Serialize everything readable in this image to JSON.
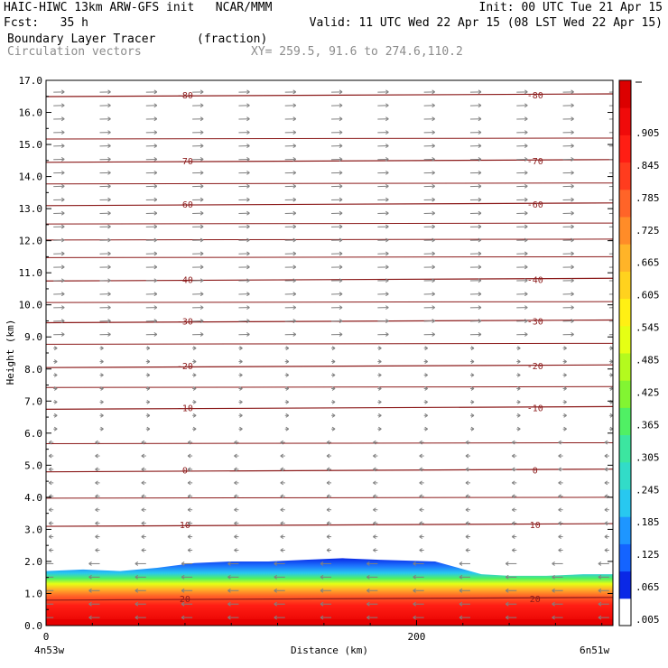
{
  "header": {
    "line1_left": "HAIC-HIWC 13km ARW-GFS init   NCAR/MMM",
    "line1_right": "Init: 00 UTC Tue 21 Apr 15",
    "line2_left": "Fcst:   35 h",
    "line2_right": "Valid: 11 UTC Wed 22 Apr 15 (08 LST Wed 22 Apr 15)",
    "field_name": "Boundary Layer Tracer",
    "field_units": "(fraction)",
    "vector_name": "Circulation vectors",
    "xy_range": "XY= 259.5, 91.6 to 274.6,110.2"
  },
  "colors": {
    "isotherm": "#8b1a1a",
    "vector": "#808080",
    "frame": "#000000"
  },
  "chart_data": {
    "type": "heatmap",
    "xlabel": "Distance (km)",
    "ylabel": "Height (km)",
    "xlim": [
      0,
      306
    ],
    "ylim": [
      0,
      17
    ],
    "x_ticks": [
      0,
      200
    ],
    "y_ticks": [
      "0.0",
      "1.0",
      "2.0",
      "3.0",
      "4.0",
      "5.0",
      "6.0",
      "7.0",
      "8.0",
      "9.0",
      "10.0",
      "11.0",
      "12.0",
      "13.0",
      "14.0",
      "15.0",
      "16.0",
      "17.0"
    ],
    "x_endpoint_labels": [
      "4n53w",
      "6n51w"
    ],
    "colorbar": {
      "labels": [
        ".005",
        ".065",
        ".125",
        ".185",
        ".245",
        ".305",
        ".365",
        ".425",
        ".485",
        ".545",
        ".605",
        ".665",
        ".725",
        ".785",
        ".845",
        ".905"
      ],
      "colors": [
        "#ffffff",
        "#0a28e6",
        "#1464ff",
        "#1e96ff",
        "#28c8f0",
        "#32dcc8",
        "#3ce6a0",
        "#50f064",
        "#82f532",
        "#b4fa1e",
        "#e6ff14",
        "#fff014",
        "#ffd21e",
        "#ffb428",
        "#ff8c28",
        "#ff6428",
        "#ff3c1e",
        "#ff1e14",
        "#f00a0a",
        "#dc0000"
      ]
    },
    "isotherms": [
      {
        "label": "-80",
        "height": 16.55
      },
      {
        "label": "-70",
        "height": 14.5
      },
      {
        "label": "-60",
        "height": 13.15
      },
      {
        "label": "-40",
        "height": 10.8
      },
      {
        "label": "-30",
        "height": 9.5
      },
      {
        "label": "-20",
        "height": 8.1
      },
      {
        "label": "-10",
        "height": 6.8
      },
      {
        "label": "0",
        "height": 4.85
      },
      {
        "label": "10",
        "height": 3.15
      },
      {
        "label": "20",
        "height": 0.85
      }
    ],
    "tracer_top_km": [
      1.7,
      1.75,
      1.7,
      1.8,
      1.95,
      2.0,
      2.0,
      2.05,
      2.1,
      2.05,
      2.0,
      1.6,
      1.55,
      1.55,
      1.6,
      1.6
    ],
    "tracer_x_km": [
      0,
      20,
      40,
      60,
      80,
      100,
      120,
      140,
      160,
      180,
      210,
      235,
      250,
      270,
      290,
      306
    ]
  }
}
